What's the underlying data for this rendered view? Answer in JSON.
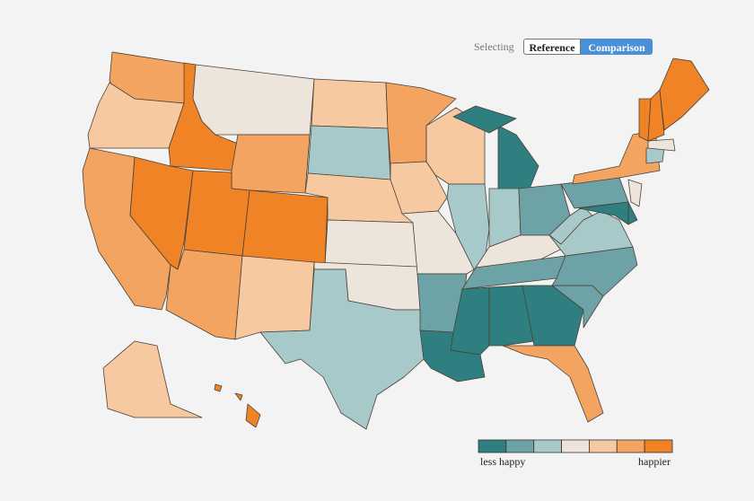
{
  "controls": {
    "label": "Selecting",
    "options": [
      "Reference",
      "Comparison"
    ],
    "selected": 1
  },
  "legend": {
    "colors": [
      "#2f7f80",
      "#6da3a6",
      "#a8c9ca",
      "#ede5db",
      "#f7c9a1",
      "#f3a461",
      "#ef8325"
    ],
    "low_label": "less happy",
    "high_label": "happier"
  }
}
